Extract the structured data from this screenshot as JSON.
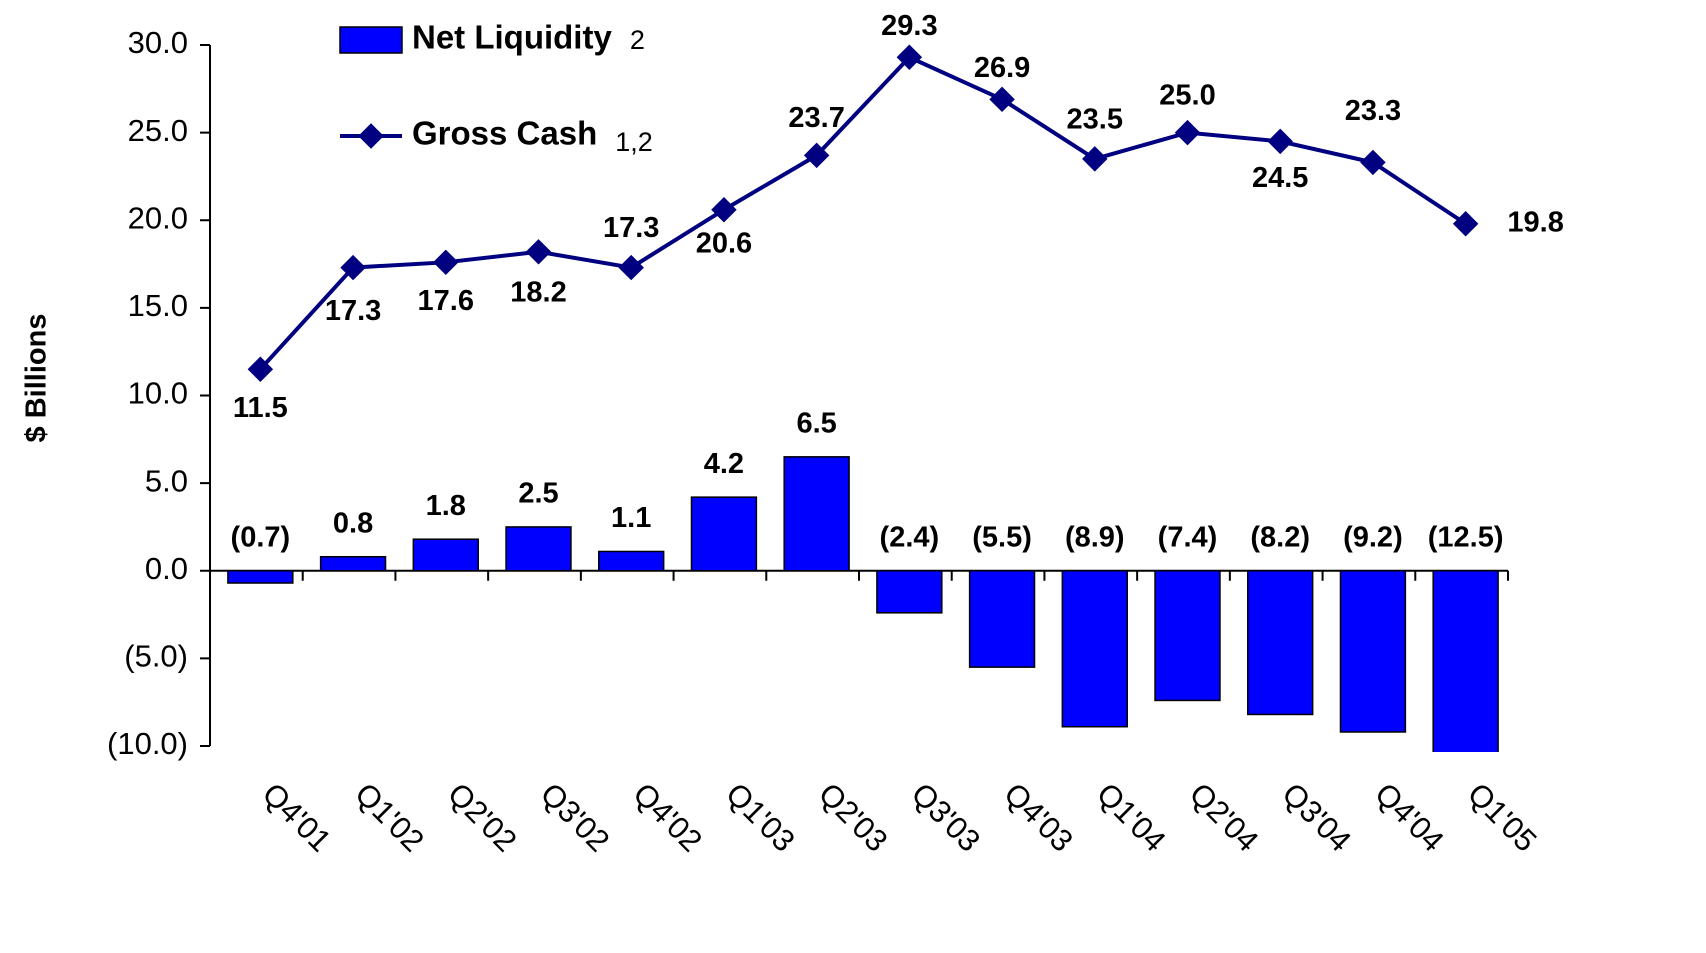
{
  "chart_data": {
    "type": "bar-line",
    "y_label": "$ Billions",
    "categories": [
      "Q4'01",
      "Q1'02",
      "Q2'02",
      "Q3'02",
      "Q4'02",
      "Q1'03",
      "Q2'03",
      "Q3'03",
      "Q4'03",
      "Q1'04",
      "Q2'04",
      "Q3'04",
      "Q4'04",
      "Q1'05"
    ],
    "series": [
      {
        "name": "Net Liquidity",
        "name_note": "2",
        "type": "bar",
        "color": "#0000ff",
        "values": [
          -0.7,
          0.8,
          1.8,
          2.5,
          1.1,
          4.2,
          6.5,
          -2.4,
          -5.5,
          -8.9,
          -7.4,
          -8.2,
          -9.2,
          -12.5
        ],
        "value_labels": [
          "(0.7)",
          "0.8",
          "1.8",
          "2.5",
          "1.1",
          "4.2",
          "6.5",
          "(2.4)",
          "(5.5)",
          "(8.9)",
          "(7.4)",
          "(8.2)",
          "(9.2)",
          "(12.5)"
        ]
      },
      {
        "name": "Gross Cash",
        "name_note": "1,2",
        "type": "line",
        "color": "#000080",
        "values": [
          11.5,
          17.3,
          17.6,
          18.2,
          17.3,
          20.6,
          23.7,
          29.3,
          26.9,
          23.5,
          25.0,
          24.5,
          23.3,
          19.8
        ],
        "value_labels": [
          "11.5",
          "17.3",
          "17.6",
          "18.2",
          "17.3",
          "20.6",
          "23.7",
          "29.3",
          "26.9",
          "23.5",
          "25.0",
          "24.5",
          "23.3",
          "19.8"
        ]
      }
    ],
    "ylim": [
      -10,
      30
    ],
    "yticks": [
      {
        "value": -10,
        "label": "(10.0)"
      },
      {
        "value": -5,
        "label": "(5.0)"
      },
      {
        "value": 0,
        "label": "0.0"
      },
      {
        "value": 5,
        "label": "5.0"
      },
      {
        "value": 10,
        "label": "10.0"
      },
      {
        "value": 15,
        "label": "15.0"
      },
      {
        "value": 20,
        "label": "20.0"
      },
      {
        "value": 25,
        "label": "25.0"
      },
      {
        "value": 30,
        "label": "30.0"
      }
    ],
    "legend": "top-left"
  }
}
